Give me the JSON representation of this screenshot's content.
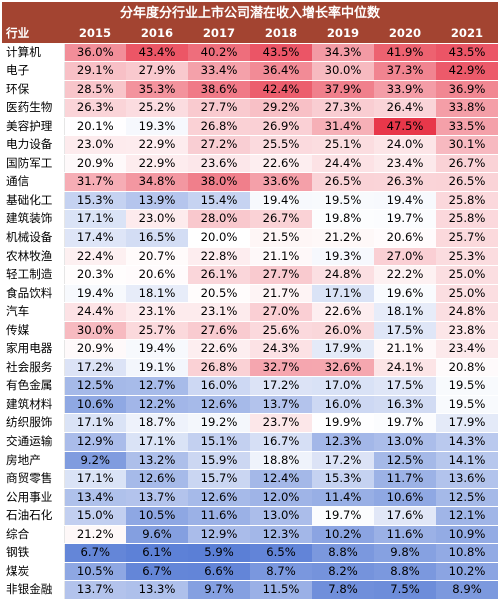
{
  "chart_data": {
    "type": "heatmap",
    "title": "分年度分行业上市公司潜在收入增长率中位数",
    "row_header": "行业",
    "columns": [
      "2015",
      "2016",
      "2017",
      "2018",
      "2019",
      "2020",
      "2021"
    ],
    "unit": "%",
    "color_scale": {
      "low": "#5b7fd6",
      "mid": "#ffffff",
      "high": "#e8374a",
      "min": 5.9,
      "mid_value": 20.0,
      "max": 47.5
    },
    "rows": [
      {
        "name": "计算机",
        "values": [
          36.0,
          43.4,
          40.2,
          43.5,
          34.3,
          41.9,
          43.5
        ]
      },
      {
        "name": "电子",
        "values": [
          29.1,
          27.9,
          33.4,
          36.4,
          30.0,
          37.3,
          42.9
        ]
      },
      {
        "name": "环保",
        "values": [
          28.5,
          35.3,
          38.6,
          42.4,
          37.9,
          33.9,
          36.9
        ]
      },
      {
        "name": "医药生物",
        "values": [
          26.3,
          25.2,
          27.7,
          29.2,
          27.3,
          26.4,
          33.8
        ]
      },
      {
        "name": "美容护理",
        "values": [
          20.1,
          19.3,
          26.8,
          26.9,
          31.4,
          47.5,
          33.5
        ]
      },
      {
        "name": "电力设备",
        "values": [
          23.0,
          22.9,
          27.2,
          25.5,
          25.1,
          24.0,
          30.1
        ]
      },
      {
        "name": "国防军工",
        "values": [
          20.9,
          22.9,
          23.6,
          22.6,
          24.4,
          23.4,
          26.7
        ]
      },
      {
        "name": "通信",
        "values": [
          31.7,
          34.8,
          38.0,
          33.6,
          26.5,
          26.3,
          26.5
        ]
      },
      {
        "name": "基础化工",
        "values": [
          15.3,
          13.9,
          15.4,
          19.4,
          19.5,
          19.4,
          25.8
        ]
      },
      {
        "name": "建筑装饰",
        "values": [
          17.1,
          23.0,
          28.0,
          26.7,
          19.8,
          19.7,
          25.8
        ]
      },
      {
        "name": "机械设备",
        "values": [
          17.4,
          16.5,
          20.0,
          21.5,
          21.2,
          20.6,
          25.7
        ]
      },
      {
        "name": "农林牧渔",
        "values": [
          22.4,
          20.7,
          22.8,
          21.1,
          19.3,
          27.0,
          25.3
        ]
      },
      {
        "name": "轻工制造",
        "values": [
          20.3,
          20.6,
          26.1,
          27.7,
          24.8,
          22.2,
          25.0
        ]
      },
      {
        "name": "食品饮料",
        "values": [
          19.4,
          18.1,
          20.5,
          21.7,
          17.1,
          19.6,
          25.0
        ]
      },
      {
        "name": "汽车",
        "values": [
          24.4,
          23.1,
          23.1,
          27.0,
          22.6,
          18.1,
          24.8
        ]
      },
      {
        "name": "传媒",
        "values": [
          30.0,
          25.7,
          27.6,
          25.6,
          26.0,
          17.5,
          23.8
        ]
      },
      {
        "name": "家用电器",
        "values": [
          20.9,
          19.4,
          22.6,
          24.3,
          17.9,
          21.1,
          23.4
        ]
      },
      {
        "name": "社会服务",
        "values": [
          17.2,
          19.1,
          26.8,
          32.7,
          32.6,
          24.1,
          20.8
        ]
      },
      {
        "name": "有色金属",
        "values": [
          12.5,
          12.7,
          16.0,
          17.2,
          17.0,
          17.5,
          19.5
        ]
      },
      {
        "name": "建筑材料",
        "values": [
          10.6,
          12.2,
          12.6,
          13.7,
          16.0,
          16.3,
          19.5
        ]
      },
      {
        "name": "纺织服饰",
        "values": [
          17.1,
          18.7,
          19.2,
          23.7,
          19.9,
          19.7,
          17.9
        ]
      },
      {
        "name": "交通运输",
        "values": [
          12.9,
          17.1,
          15.1,
          16.7,
          12.3,
          13.0,
          14.3
        ]
      },
      {
        "name": "房地产",
        "values": [
          9.2,
          13.2,
          15.9,
          18.8,
          17.2,
          12.5,
          14.1
        ]
      },
      {
        "name": "商贸零售",
        "values": [
          17.1,
          12.6,
          15.7,
          12.4,
          15.3,
          11.7,
          13.6
        ]
      },
      {
        "name": "公用事业",
        "values": [
          13.4,
          13.7,
          12.6,
          12.0,
          11.4,
          10.6,
          12.5
        ]
      },
      {
        "name": "石油石化",
        "values": [
          15.0,
          10.5,
          11.6,
          13.0,
          19.7,
          17.6,
          12.1
        ]
      },
      {
        "name": "综合",
        "values": [
          21.2,
          9.6,
          12.9,
          12.3,
          10.2,
          11.6,
          10.9
        ]
      },
      {
        "name": "钢铁",
        "values": [
          6.7,
          6.1,
          5.9,
          6.5,
          8.8,
          9.8,
          10.8
        ]
      },
      {
        "name": "煤炭",
        "values": [
          10.5,
          6.7,
          6.6,
          8.7,
          8.2,
          8.8,
          10.2
        ]
      },
      {
        "name": "非银金融",
        "values": [
          13.7,
          13.3,
          9.7,
          11.5,
          7.8,
          7.5,
          8.9
        ]
      }
    ]
  }
}
